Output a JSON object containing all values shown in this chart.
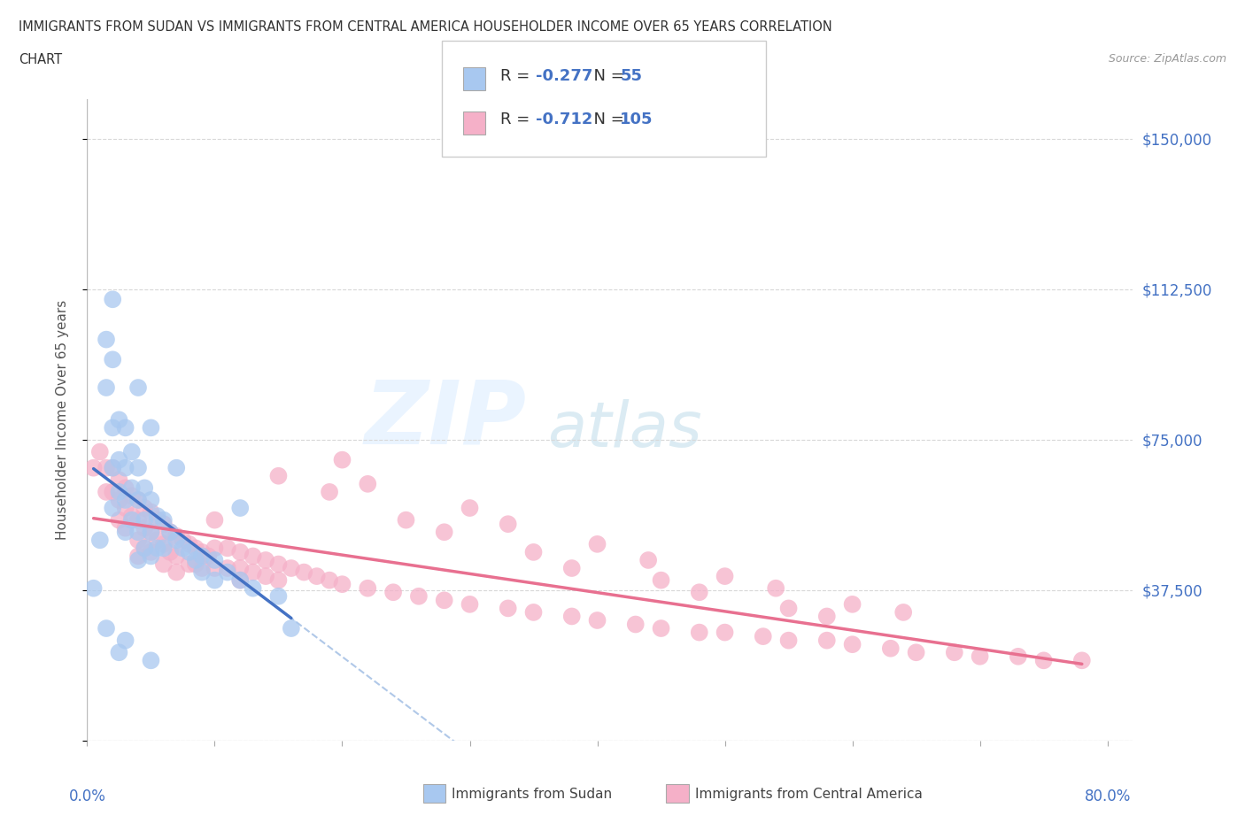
{
  "title_line1": "IMMIGRANTS FROM SUDAN VS IMMIGRANTS FROM CENTRAL AMERICA HOUSEHOLDER INCOME OVER 65 YEARS CORRELATION",
  "title_line2": "CHART",
  "source": "Source: ZipAtlas.com",
  "ylabel": "Householder Income Over 65 years",
  "r_sudan": -0.277,
  "n_sudan": 55,
  "r_central": -0.712,
  "n_central": 105,
  "sudan_color": "#a8c8f0",
  "central_color": "#f5b0c8",
  "sudan_line_color": "#4472c4",
  "central_line_color": "#e87090",
  "dashed_line_color": "#b0c8e8",
  "x_ticks": [
    0.0,
    0.1,
    0.2,
    0.3,
    0.4,
    0.5,
    0.6,
    0.7,
    0.8
  ],
  "y_ticks": [
    0,
    37500,
    75000,
    112500,
    150000
  ],
  "y_tick_labels": [
    "",
    "$37,500",
    "$75,000",
    "$112,500",
    "$150,000"
  ],
  "xlim": [
    0.0,
    0.82
  ],
  "ylim": [
    0,
    160000
  ],
  "background_color": "#ffffff",
  "grid_color": "#d8d8d8",
  "watermark_zip": "ZIP",
  "watermark_atlas": "atlas",
  "sudan_scatter_x": [
    0.005,
    0.01,
    0.015,
    0.015,
    0.02,
    0.02,
    0.02,
    0.02,
    0.025,
    0.025,
    0.025,
    0.03,
    0.03,
    0.03,
    0.03,
    0.035,
    0.035,
    0.035,
    0.04,
    0.04,
    0.04,
    0.04,
    0.045,
    0.045,
    0.045,
    0.05,
    0.05,
    0.05,
    0.055,
    0.055,
    0.06,
    0.06,
    0.065,
    0.07,
    0.075,
    0.08,
    0.085,
    0.09,
    0.09,
    0.1,
    0.1,
    0.11,
    0.12,
    0.13,
    0.15,
    0.02,
    0.04,
    0.05,
    0.07,
    0.12,
    0.015,
    0.03,
    0.16,
    0.025,
    0.05
  ],
  "sudan_scatter_y": [
    38000,
    50000,
    100000,
    88000,
    95000,
    78000,
    68000,
    58000,
    80000,
    70000,
    62000,
    78000,
    68000,
    60000,
    52000,
    72000,
    63000,
    55000,
    68000,
    60000,
    52000,
    45000,
    63000,
    55000,
    48000,
    60000,
    52000,
    46000,
    56000,
    48000,
    55000,
    48000,
    52000,
    50000,
    48000,
    47000,
    45000,
    46000,
    42000,
    45000,
    40000,
    42000,
    40000,
    38000,
    36000,
    110000,
    88000,
    78000,
    68000,
    58000,
    28000,
    25000,
    28000,
    22000,
    20000
  ],
  "central_scatter_x": [
    0.005,
    0.01,
    0.015,
    0.015,
    0.02,
    0.02,
    0.025,
    0.025,
    0.025,
    0.03,
    0.03,
    0.03,
    0.035,
    0.035,
    0.04,
    0.04,
    0.04,
    0.04,
    0.045,
    0.045,
    0.045,
    0.05,
    0.05,
    0.05,
    0.055,
    0.055,
    0.06,
    0.06,
    0.06,
    0.065,
    0.065,
    0.07,
    0.07,
    0.07,
    0.075,
    0.08,
    0.08,
    0.085,
    0.085,
    0.09,
    0.09,
    0.095,
    0.1,
    0.1,
    0.1,
    0.11,
    0.11,
    0.12,
    0.12,
    0.12,
    0.13,
    0.13,
    0.14,
    0.14,
    0.15,
    0.15,
    0.16,
    0.17,
    0.18,
    0.19,
    0.2,
    0.22,
    0.24,
    0.26,
    0.28,
    0.3,
    0.33,
    0.35,
    0.38,
    0.4,
    0.43,
    0.45,
    0.48,
    0.5,
    0.53,
    0.55,
    0.58,
    0.6,
    0.63,
    0.65,
    0.68,
    0.7,
    0.73,
    0.75,
    0.78,
    0.2,
    0.3,
    0.4,
    0.5,
    0.6,
    0.15,
    0.25,
    0.35,
    0.45,
    0.55,
    0.22,
    0.33,
    0.44,
    0.54,
    0.64,
    0.19,
    0.28,
    0.38,
    0.48,
    0.58
  ],
  "central_scatter_y": [
    68000,
    72000,
    68000,
    62000,
    68000,
    62000,
    65000,
    60000,
    55000,
    63000,
    58000,
    53000,
    61000,
    56000,
    60000,
    55000,
    50000,
    46000,
    58000,
    53000,
    48000,
    57000,
    52000,
    47000,
    55000,
    50000,
    54000,
    49000,
    44000,
    52000,
    47000,
    51000,
    46000,
    42000,
    50000,
    49000,
    44000,
    48000,
    44000,
    47000,
    43000,
    46000,
    55000,
    48000,
    43000,
    48000,
    43000,
    47000,
    43000,
    40000,
    46000,
    42000,
    45000,
    41000,
    44000,
    40000,
    43000,
    42000,
    41000,
    40000,
    39000,
    38000,
    37000,
    36000,
    35000,
    34000,
    33000,
    32000,
    31000,
    30000,
    29000,
    28000,
    27000,
    27000,
    26000,
    25000,
    25000,
    24000,
    23000,
    22000,
    22000,
    21000,
    21000,
    20000,
    20000,
    70000,
    58000,
    49000,
    41000,
    34000,
    66000,
    55000,
    47000,
    40000,
    33000,
    64000,
    54000,
    45000,
    38000,
    32000,
    62000,
    52000,
    43000,
    37000,
    31000
  ]
}
